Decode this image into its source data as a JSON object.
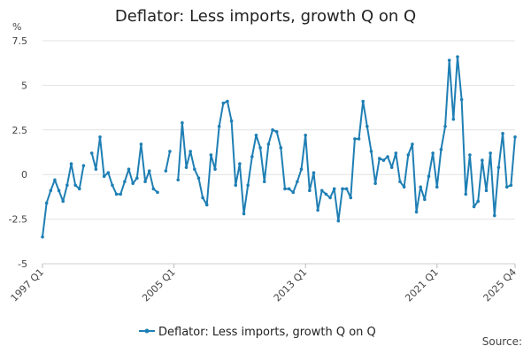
{
  "chart_data": {
    "type": "line",
    "title": "Deflator: Less imports, growth Q on Q",
    "ylabel": "%",
    "xlabel": "",
    "ylim": [
      -5,
      7.5
    ],
    "yticks": [
      "7.5",
      "5",
      "2.5",
      "0",
      "-2.5",
      "-5"
    ],
    "ytick_values": [
      7.5,
      5,
      2.5,
      0,
      -2.5,
      -5
    ],
    "x_ticks": [
      {
        "label": "1997 Q1",
        "index": 0
      },
      {
        "label": "2005 Q1",
        "index": 32
      },
      {
        "label": "2013 Q1",
        "index": 64
      },
      {
        "label": "2021 Q1",
        "index": 96
      },
      {
        "label": "2025 Q4",
        "index": 115
      }
    ],
    "x_start": "1997 Q1",
    "x_end": "2025 Q4",
    "series": [
      {
        "name": "Deflator: Less imports, growth Q on Q",
        "color": "#1f7fb4",
        "values": [
          -3.5,
          -1.6,
          -0.9,
          -0.3,
          -0.9,
          -1.5,
          -0.6,
          0.6,
          -0.6,
          -0.8,
          0.5,
          null,
          1.2,
          0.3,
          2.1,
          -0.1,
          0.1,
          -0.6,
          -1.1,
          -1.1,
          -0.4,
          0.3,
          -0.5,
          -0.2,
          1.7,
          -0.4,
          0.2,
          -0.8,
          -1.0,
          null,
          0.2,
          1.3,
          null,
          -0.3,
          2.9,
          0.4,
          1.3,
          0.3,
          -0.2,
          -1.3,
          -1.7,
          1.1,
          0.3,
          2.7,
          4.0,
          4.1,
          3.0,
          -0.6,
          0.6,
          -2.2,
          -0.6,
          1.0,
          2.2,
          1.5,
          -0.4,
          1.7,
          2.5,
          2.4,
          1.5,
          -0.8,
          -0.8,
          -1.0,
          -0.4,
          0.3,
          2.2,
          -0.9,
          0.1,
          -2.0,
          -0.9,
          -1.1,
          -1.3,
          -0.8,
          -2.6,
          -0.8,
          -0.8,
          -1.3,
          2.0,
          2.0,
          4.1,
          2.7,
          1.3,
          -0.5,
          0.9,
          0.8,
          1.0,
          0.4,
          1.2,
          -0.4,
          -0.7,
          1.1,
          1.7,
          -2.1,
          -0.7,
          -1.4,
          -0.1,
          1.2,
          -0.7,
          1.4,
          2.7,
          6.4,
          3.1,
          6.6,
          4.2,
          -1.1,
          1.1,
          -1.8,
          -1.5,
          0.8,
          -0.9,
          1.2,
          -2.3,
          0.4,
          2.3,
          -0.7,
          -0.6,
          2.1
        ]
      }
    ],
    "legend": {
      "label": "Deflator: Less imports, growth Q on Q",
      "position": "bottom-center"
    }
  },
  "source_label": "Source:"
}
